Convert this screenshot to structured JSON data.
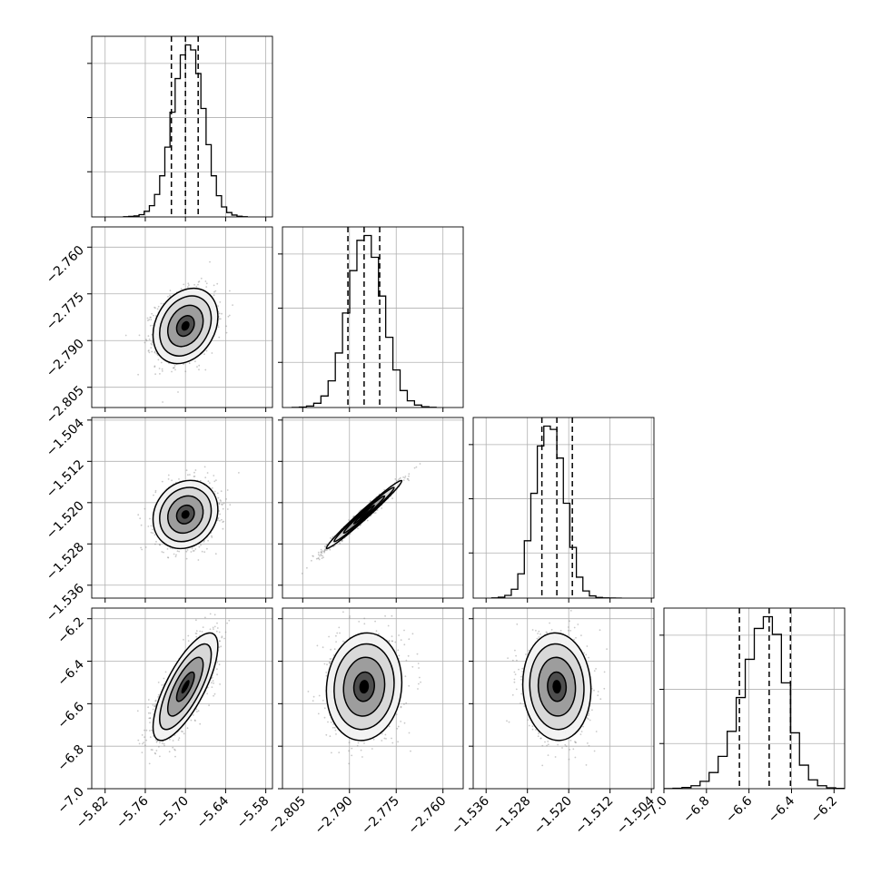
{
  "chart_data": {
    "type": "corner",
    "parameters": [
      {
        "range": [
          -5.84,
          -5.57
        ],
        "ticks": [
          -5.82,
          -5.76,
          -5.7,
          -5.64,
          -5.58
        ],
        "tick_labels": [
          "−5.82",
          "−5.76",
          "−5.70",
          "−5.64",
          "−5.58"
        ],
        "quantiles": [
          -5.721,
          -5.7,
          -5.681
        ],
        "mean": -5.7,
        "sd": 0.022
      },
      {
        "range": [
          -2.8115,
          -2.7535
        ],
        "ticks": [
          -2.805,
          -2.79,
          -2.775,
          -2.76
        ],
        "tick_labels": [
          "−2.805",
          "−2.790",
          "−2.775",
          "−2.760"
        ],
        "quantiles": [
          -2.7905,
          -2.7853,
          -2.7803
        ],
        "mean": -2.7853,
        "sd": 0.0055
      },
      {
        "range": [
          -1.5385,
          -1.5035
        ],
        "ticks": [
          -1.536,
          -1.528,
          -1.52,
          -1.512,
          -1.504
        ],
        "tick_labels": [
          "−1.536",
          "−1.528",
          "−1.520",
          "−1.512",
          "−1.504"
        ],
        "quantiles": [
          -1.5252,
          -1.5223,
          -1.5193
        ],
        "mean": -1.5223,
        "sd": 0.003
      },
      {
        "range": [
          -7.0,
          -6.15
        ],
        "ticks": [
          -7.0,
          -6.8,
          -6.6,
          -6.4,
          -6.2
        ],
        "tick_labels": [
          "−7.0",
          "−6.8",
          "−6.6",
          "−6.4",
          "−6.2"
        ],
        "quantiles": [
          -6.645,
          -6.505,
          -6.405
        ],
        "mean": -6.52,
        "sd": 0.115
      }
    ],
    "histograms": [
      {
        "param": 0,
        "counts": [
          2,
          4,
          8,
          18,
          45,
          90,
          180,
          330,
          560,
          840,
          1110,
          1300,
          1380,
          1340,
          1150,
          870,
          580,
          330,
          170,
          80,
          35,
          15,
          5,
          2
        ]
      },
      {
        "param": 1,
        "counts": [
          1,
          4,
          12,
          35,
          95,
          220,
          450,
          780,
          1130,
          1380,
          1420,
          1240,
          920,
          580,
          310,
          140,
          55,
          20,
          6,
          2
        ]
      },
      {
        "param": 2,
        "counts": [
          2,
          8,
          25,
          80,
          220,
          520,
          950,
          1380,
          1560,
          1530,
          1270,
          860,
          460,
          190,
          65,
          20,
          6,
          2,
          1,
          0
        ]
      },
      {
        "param": 3,
        "counts": [
          1,
          3,
          8,
          20,
          50,
          110,
          220,
          390,
          620,
          880,
          1090,
          1170,
          1050,
          720,
          380,
          160,
          60,
          20,
          6,
          2
        ]
      }
    ],
    "correlations": [
      {
        "x": 0,
        "y": 1,
        "rho": 0.25
      },
      {
        "x": 0,
        "y": 2,
        "rho": 0.15
      },
      {
        "x": 1,
        "y": 2,
        "rho": 0.985
      },
      {
        "x": 0,
        "y": 3,
        "rho": 0.75
      },
      {
        "x": 1,
        "y": 3,
        "rho": 0.08
      },
      {
        "x": 2,
        "y": 3,
        "rho": -0.05
      }
    ],
    "grid": true,
    "quantile_line_style": "dashed"
  }
}
